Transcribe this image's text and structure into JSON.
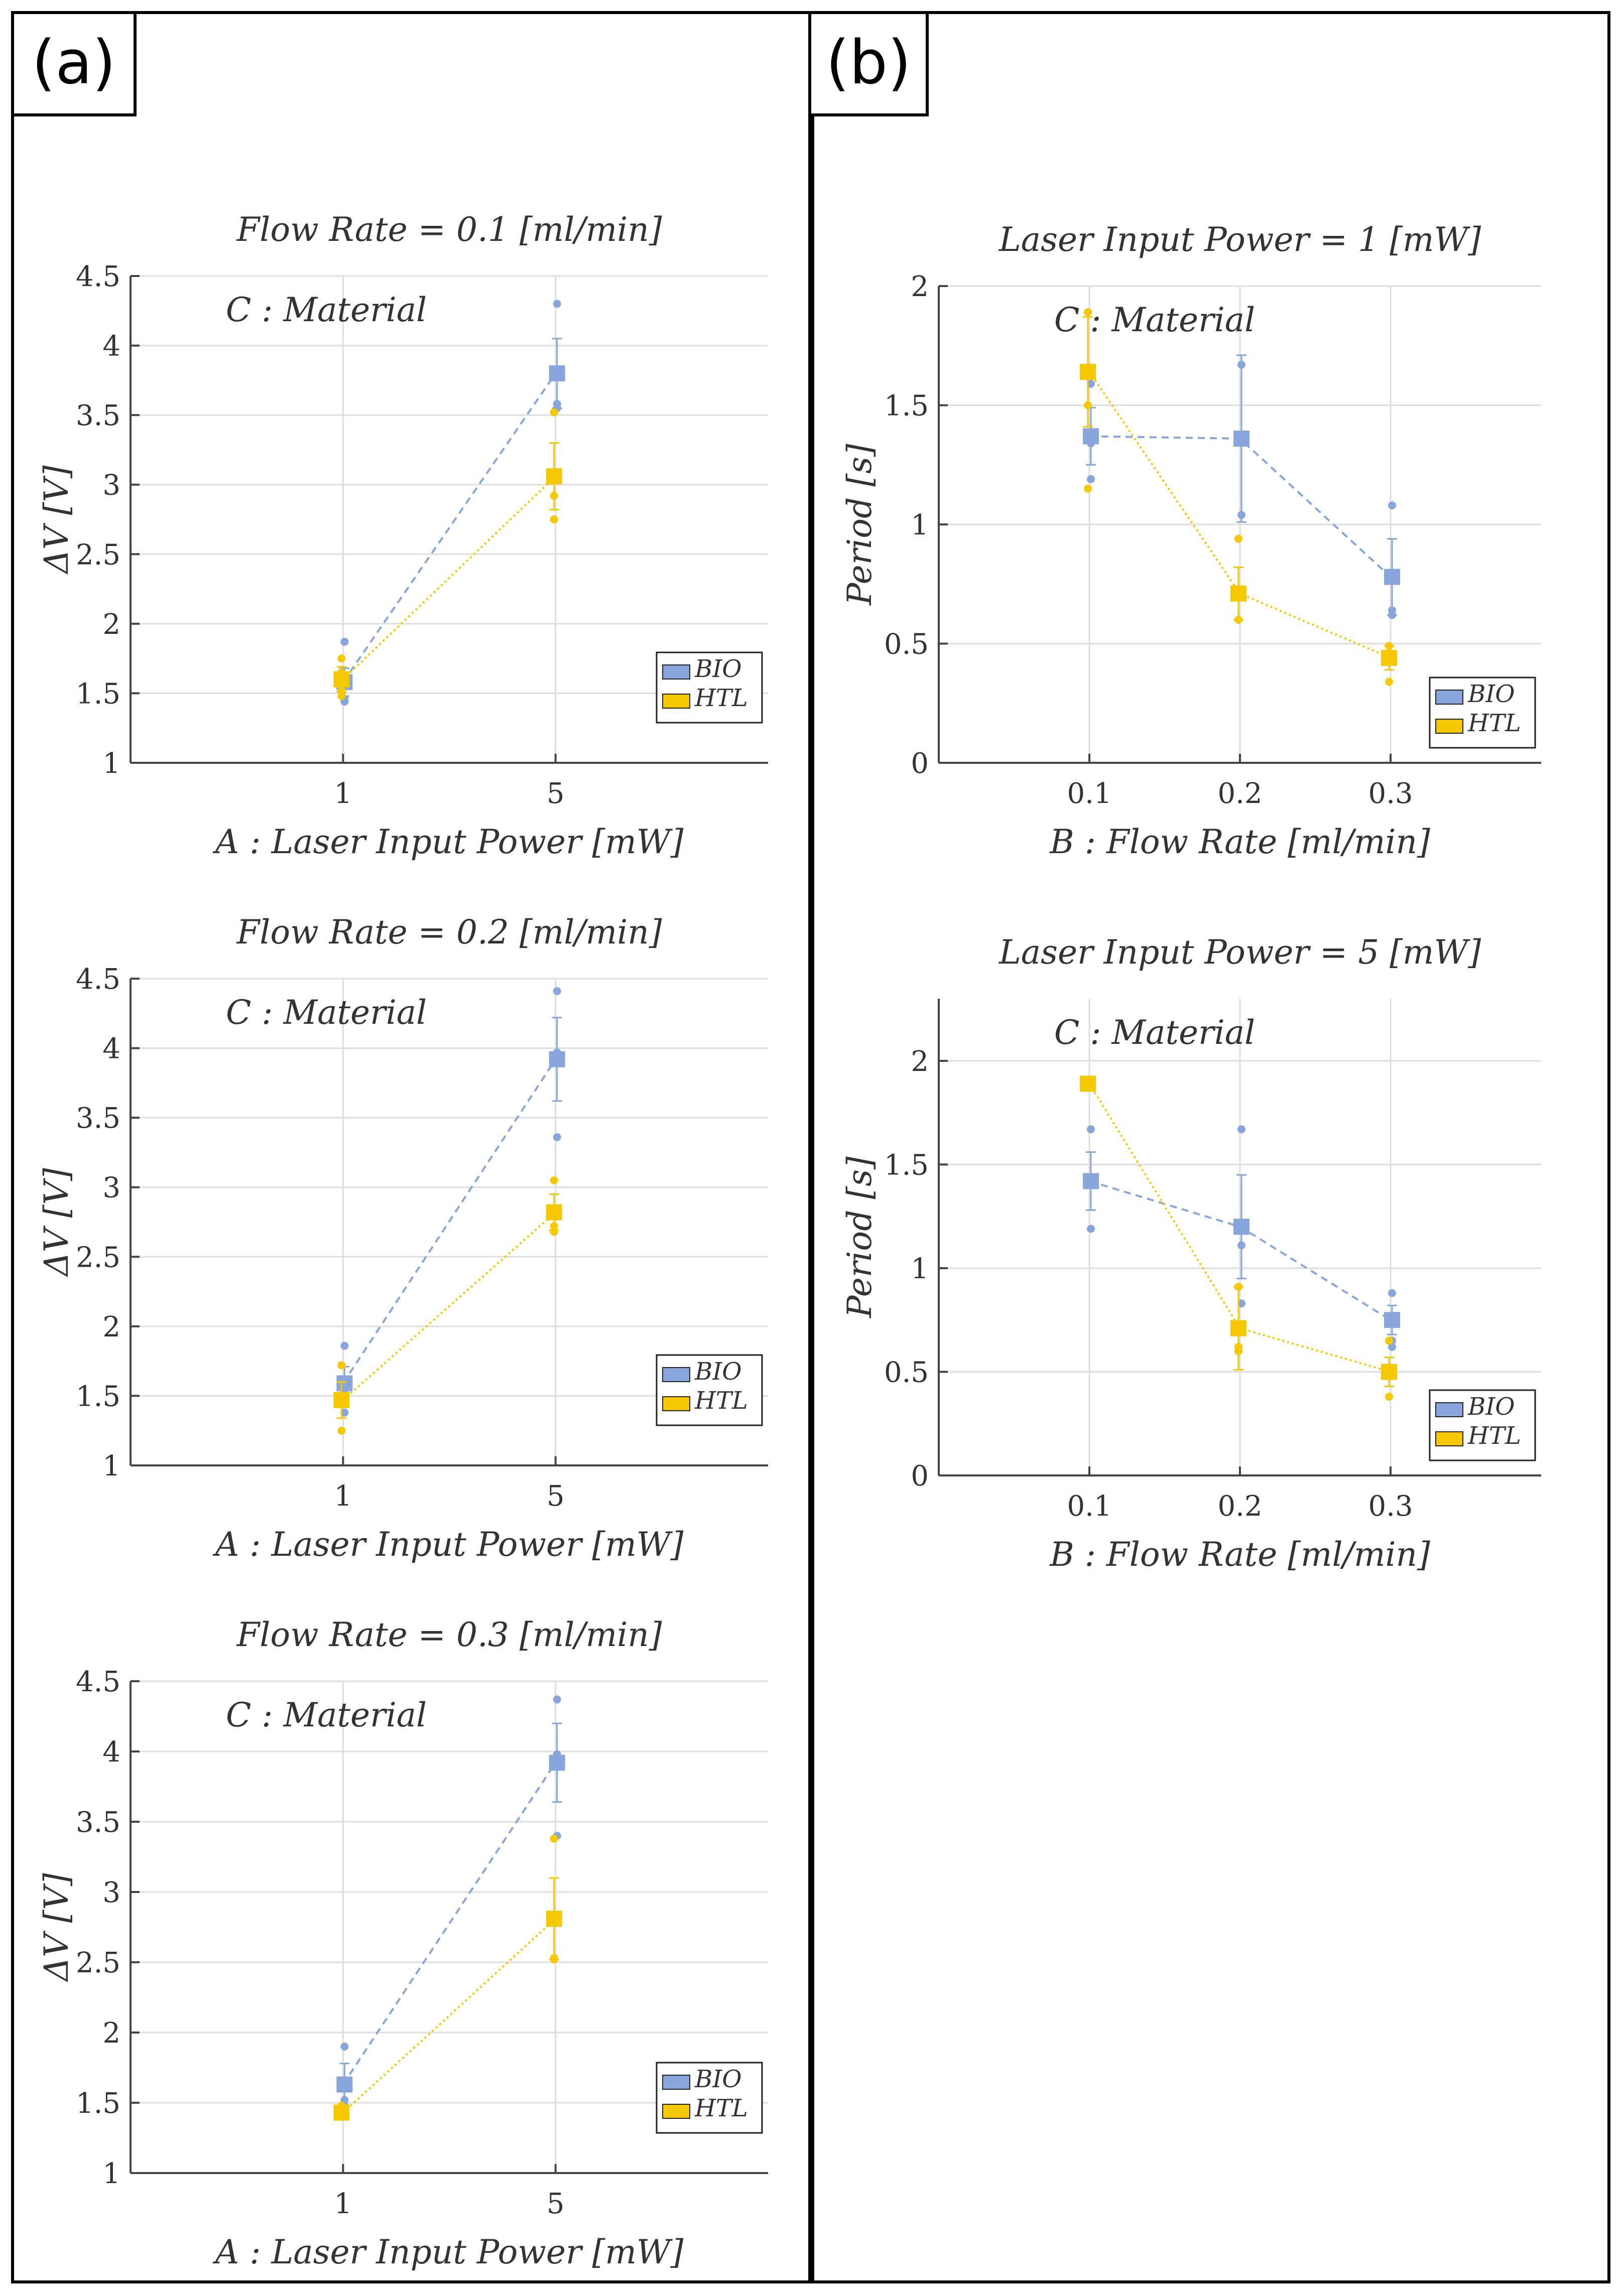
{
  "panels": [
    {
      "label": "(a)"
    },
    {
      "label": "(b)"
    }
  ],
  "colors": {
    "bio": "#89a6dc",
    "htl": "#f5c800",
    "grid": "#dedede",
    "axis": "#444444"
  },
  "legend": {
    "bio": "BIO",
    "htl": "HTL"
  },
  "chart_data": [
    {
      "type": "line",
      "panel": "(a)",
      "title": "Flow Rate = 0.1 [ml/min]",
      "annotation": "C :  Material",
      "xlabel": "A :  Laser Input Power [mW]",
      "ylabel": "ΔV [V]",
      "categories": [
        "1",
        "5"
      ],
      "xlim": [
        0,
        3
      ],
      "ylim": [
        1,
        4.5
      ],
      "yticks": [
        1,
        1.5,
        2,
        2.5,
        3,
        3.5,
        4,
        4.5
      ],
      "yticklabels": [
        "1",
        "1.5",
        "2",
        "2.5",
        "3",
        "3.5",
        "4",
        "4.5"
      ],
      "series": [
        {
          "name": "BIO",
          "means": [
            1.58,
            3.8
          ],
          "errors": [
            0.1,
            0.25
          ],
          "points": [
            [
              1.87,
              1.46,
              1.44,
              1.55
            ],
            [
              4.3,
              3.58,
              3.55,
              3.78
            ]
          ]
        },
        {
          "name": "HTL",
          "means": [
            1.6,
            3.06
          ],
          "errors": [
            0.09,
            0.24
          ],
          "points": [
            [
              1.75,
              1.65,
              1.52,
              1.48
            ],
            [
              3.52,
              2.92,
              2.75,
              3.05
            ]
          ]
        }
      ]
    },
    {
      "type": "line",
      "panel": "(a)",
      "title": "Flow Rate = 0.2 [ml/min]",
      "annotation": "C :  Material",
      "xlabel": "A :  Laser Input Power [mW]",
      "ylabel": "ΔV [V]",
      "categories": [
        "1",
        "5"
      ],
      "xlim": [
        0,
        3
      ],
      "ylim": [
        1,
        4.5
      ],
      "yticks": [
        1,
        1.5,
        2,
        2.5,
        3,
        3.5,
        4,
        4.5
      ],
      "yticklabels": [
        "1",
        "1.5",
        "2",
        "2.5",
        "3",
        "3.5",
        "4",
        "4.5"
      ],
      "series": [
        {
          "name": "BIO",
          "means": [
            1.59,
            3.92
          ],
          "errors": [
            0.12,
            0.3
          ],
          "points": [
            [
              1.86,
              1.55,
              1.38,
              1.6
            ],
            [
              4.41,
              3.97,
              3.36,
              3.95
            ]
          ]
        },
        {
          "name": "HTL",
          "means": [
            1.47,
            2.82
          ],
          "errors": [
            0.13,
            0.13
          ],
          "points": [
            [
              1.72,
              1.5,
              1.25,
              1.45
            ],
            [
              3.05,
              2.72,
              2.68,
              2.8
            ]
          ]
        }
      ]
    },
    {
      "type": "line",
      "panel": "(a)",
      "title": "Flow Rate = 0.3 [ml/min]",
      "annotation": "C :  Material",
      "xlabel": "A :  Laser Input Power [mW]",
      "ylabel": "ΔV [V]",
      "categories": [
        "1",
        "5"
      ],
      "xlim": [
        0,
        3
      ],
      "ylim": [
        1,
        4.5
      ],
      "yticks": [
        1,
        1.5,
        2,
        2.5,
        3,
        3.5,
        4,
        4.5
      ],
      "yticklabels": [
        "1",
        "1.5",
        "2",
        "2.5",
        "3",
        "3.5",
        "4",
        "4.5"
      ],
      "series": [
        {
          "name": "BIO",
          "means": [
            1.63,
            3.92
          ],
          "errors": [
            0.15,
            0.28
          ],
          "points": [
            [
              1.9,
              1.65,
              1.52,
              1.48
            ],
            [
              4.37,
              3.98,
              3.4,
              3.93
            ]
          ]
        },
        {
          "name": "HTL",
          "means": [
            1.43,
            2.81
          ],
          "errors": [
            0.05,
            0.29
          ],
          "points": [
            [
              1.48,
              1.42,
              1.4,
              1.44
            ],
            [
              3.38,
              2.53,
              2.52,
              2.82
            ]
          ]
        }
      ]
    },
    {
      "type": "line",
      "panel": "(b)",
      "title": "Laser Input Power = 1 [mW]",
      "annotation": "C :  Material",
      "xlabel": "B :  Flow Rate [ml/min]",
      "ylabel": "Period [s]",
      "categories": [
        "0.1",
        "0.2",
        "0.3"
      ],
      "xlim": [
        0,
        4
      ],
      "ylim": [
        0,
        2
      ],
      "yticks": [
        0,
        0.5,
        1,
        1.5,
        2
      ],
      "yticklabels": [
        "0",
        "0.5",
        "1",
        "1.5",
        "2"
      ],
      "series": [
        {
          "name": "BIO",
          "means": [
            1.37,
            1.36,
            0.78
          ],
          "errors": [
            0.12,
            0.35,
            0.16
          ],
          "points": [
            [
              1.59,
              1.34,
              1.19,
              1.36
            ],
            [
              1.67,
              1.04,
              1.37,
              1.35
            ],
            [
              1.08,
              0.64,
              0.62,
              0.78
            ]
          ]
        },
        {
          "name": "HTL",
          "means": [
            1.64,
            0.71,
            0.44
          ],
          "errors": [
            0.23,
            0.11,
            0.05
          ],
          "points": [
            [
              1.89,
              1.15,
              1.5,
              1.64
            ],
            [
              0.94,
              0.6,
              0.72,
              0.7
            ],
            [
              0.49,
              0.34,
              0.45,
              0.44
            ]
          ]
        }
      ]
    },
    {
      "type": "line",
      "panel": "(b)",
      "title": "Laser Input Power = 5 [mW]",
      "annotation": "C :  Material",
      "xlabel": "B :  Flow Rate [ml/min]",
      "ylabel": "Period [s]",
      "categories": [
        "0.1",
        "0.2",
        "0.3"
      ],
      "xlim": [
        0,
        4
      ],
      "ylim": [
        0,
        2.3
      ],
      "yticks": [
        0,
        0.5,
        1,
        1.5,
        2
      ],
      "yticklabels": [
        "0",
        "0.5",
        "1",
        "1.5",
        "2"
      ],
      "series": [
        {
          "name": "BIO",
          "means": [
            1.42,
            1.2,
            0.75
          ],
          "errors": [
            0.14,
            0.25,
            0.07
          ],
          "points": [
            [
              1.67,
              1.4,
              1.19,
              1.43
            ],
            [
              1.67,
              1.11,
              0.83,
              1.2
            ],
            [
              0.88,
              0.65,
              0.62,
              0.75
            ]
          ]
        },
        {
          "name": "HTL",
          "means": [
            1.89,
            0.71,
            0.5
          ],
          "errors": [
            0.0,
            0.2,
            0.07
          ],
          "points": [
            [
              1.89,
              1.89,
              1.89,
              1.89
            ],
            [
              0.91,
              0.6,
              0.62,
              0.72
            ],
            [
              0.65,
              0.38,
              0.48,
              0.5
            ]
          ]
        }
      ]
    }
  ]
}
